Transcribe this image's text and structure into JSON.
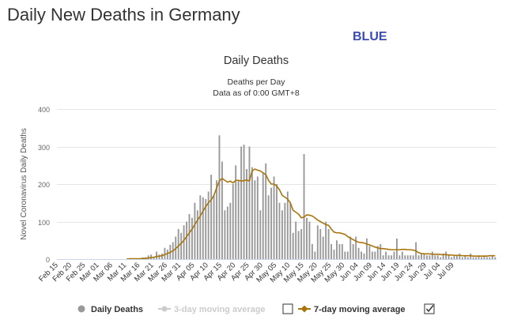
{
  "page": {
    "title": "Daily New Deaths in Germany",
    "brand": "BLUE"
  },
  "colors": {
    "bars": "#999999",
    "line": "#a8750c",
    "grid": "#e6e6e6",
    "legend_disabled": "#cccccc",
    "text": "#333333"
  },
  "chart_data": {
    "type": "bar",
    "title": "Daily Deaths",
    "subtitle_line1": "Deaths per Day",
    "subtitle_line2": "Data as of 0:00 GMT+8",
    "ylabel": "Novel Coronavirus Daily Deaths",
    "ylim": [
      0,
      400
    ],
    "yticks": [
      0,
      100,
      200,
      300,
      400
    ],
    "grid": true,
    "legend_position": "bottom",
    "start_date": "2020-02-15",
    "x_tick_labels": [
      "Feb 15",
      "Feb 20",
      "Feb 25",
      "Mar 01",
      "Mar 06",
      "Mar 11",
      "Mar 16",
      "Mar 21",
      "Mar 26",
      "Mar 31",
      "Apr 05",
      "Apr 10",
      "Apr 15",
      "Apr 20",
      "Apr 25",
      "Apr 30",
      "May 05",
      "May 10",
      "May 15",
      "May 20",
      "May 25",
      "May 30",
      "Jun 04",
      "Jun 09",
      "Jun 14",
      "Jun 19",
      "Jun 24",
      "Jun 29",
      "Jul 04",
      "Jul 09"
    ],
    "series": [
      {
        "name": "Daily Deaths",
        "type": "bar",
        "values": [
          0,
          0,
          0,
          0,
          0,
          0,
          0,
          0,
          0,
          0,
          0,
          0,
          0,
          0,
          0,
          0,
          0,
          0,
          0,
          0,
          0,
          0,
          0,
          0,
          0,
          0,
          2,
          0,
          2,
          0,
          2,
          4,
          5,
          10,
          12,
          5,
          20,
          12,
          15,
          30,
          25,
          38,
          45,
          60,
          80,
          70,
          90,
          100,
          120,
          110,
          150,
          130,
          170,
          165,
          160,
          180,
          225,
          170,
          210,
          330,
          260,
          130,
          140,
          150,
          200,
          250,
          210,
          300,
          305,
          240,
          300,
          245,
          210,
          220,
          130,
          230,
          255,
          170,
          190,
          220,
          200,
          150,
          130,
          150,
          180,
          150,
          70,
          100,
          75,
          80,
          280,
          110,
          100,
          40,
          20,
          90,
          80,
          60,
          100,
          80,
          40,
          25,
          50,
          40,
          40,
          20,
          20,
          60,
          40,
          60,
          30,
          20,
          15,
          55,
          35,
          20,
          20,
          35,
          40,
          10,
          20,
          10,
          10,
          20,
          55,
          10,
          20,
          10,
          10,
          10,
          10,
          45,
          10,
          15,
          15,
          10,
          10,
          20,
          10,
          10,
          5,
          15,
          20,
          10,
          5,
          10,
          10,
          15,
          5,
          10,
          5,
          15,
          5,
          5,
          10,
          5,
          10,
          5,
          5,
          10,
          5
        ]
      },
      {
        "name": "3-day moving average",
        "type": "line",
        "hidden": true
      },
      {
        "name": "7-day moving average",
        "type": "line",
        "values": [
          0,
          0,
          0,
          0,
          0,
          0,
          0,
          0,
          0,
          0,
          0,
          0,
          0,
          0,
          0,
          0,
          0,
          0,
          0,
          0,
          0,
          0,
          0,
          0,
          0,
          0,
          1,
          1,
          1,
          1,
          1,
          2,
          2,
          3,
          4,
          5,
          7,
          8,
          9,
          12,
          15,
          18,
          22,
          28,
          35,
          42,
          50,
          60,
          70,
          80,
          92,
          104,
          115,
          128,
          140,
          150,
          158,
          170,
          190,
          208,
          215,
          210,
          205,
          208,
          203,
          210,
          210,
          208,
          209,
          211,
          208,
          235,
          240,
          237,
          235,
          230,
          225,
          210,
          200,
          200,
          195,
          185,
          170,
          165,
          160,
          150,
          130,
          125,
          120,
          110,
          112,
          118,
          117,
          115,
          110,
          104,
          100,
          96,
          92,
          90,
          80,
          72,
          70,
          70,
          68,
          66,
          60,
          56,
          52,
          48,
          45,
          44,
          43,
          40,
          38,
          35,
          32,
          30,
          28,
          28,
          27,
          26,
          25,
          25,
          25,
          25,
          26,
          26,
          25,
          25,
          24,
          22,
          17,
          15,
          14,
          14,
          14,
          13,
          13,
          13,
          12,
          12,
          12,
          11,
          11,
          10,
          10,
          10,
          9,
          9,
          9,
          9,
          8,
          8,
          8,
          8,
          8,
          8,
          9,
          9,
          9
        ]
      }
    ]
  },
  "legend": {
    "daily_deaths": "Daily Deaths",
    "three_day": "3-day moving average",
    "seven_day": "7-day moving average"
  }
}
